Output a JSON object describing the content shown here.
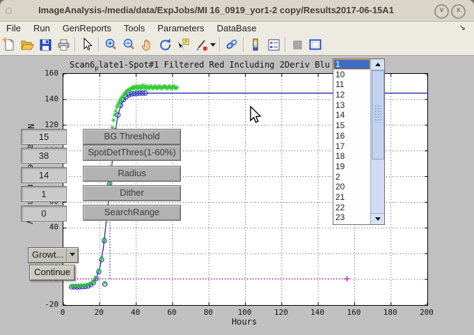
{
  "window": {
    "title": "ImageAnalysis-/media/data/ExpJobs/MI 16_0919_yor1-2 copy/Results2017-06-15A1",
    "minimize_glyph": "v",
    "close_glyph": "x"
  },
  "menu": {
    "items": [
      "File",
      "Run",
      "GenReports",
      "Tools",
      "Parameters",
      "DataBase"
    ],
    "overflow_arrow": "↘"
  },
  "toolbar": {
    "icons": [
      "new-document",
      "open-file",
      "save",
      "print",
      "cursor-arrow",
      "zoom-in",
      "zoom-out",
      "pan-hand",
      "rotate-3d",
      "data-cursor",
      "brush",
      "brush-dropdown",
      "link-plots",
      "insert-colorbar",
      "insert-legend",
      "hide-plot-tools",
      "dock-figure"
    ]
  },
  "controls": {
    "rows": [
      {
        "value": "15",
        "label": "BG Threshold"
      },
      {
        "value": "38",
        "label": "SpotDetThres(1-60%)"
      },
      {
        "value": "14",
        "label": "Radius"
      },
      {
        "value": "1",
        "label": "Dither"
      },
      {
        "value": "0",
        "label": "SearchRange"
      }
    ],
    "growth_dropdown_label": "Growt...",
    "continue_label": "Continue"
  },
  "listbox": {
    "items": [
      "1",
      "10",
      "11",
      "12",
      "13",
      "14",
      "15",
      "16",
      "17",
      "18",
      "19",
      "2",
      "20",
      "21",
      "22",
      "23"
    ],
    "selected": "1"
  },
  "chart_data": {
    "type": "line",
    "title_prefix": "Scan6",
    "title_sub": "p",
    "title_rest": "late1-Spot#1 Filtered Red Including 2Deriv Blu",
    "xlabel": "Hours",
    "ylabel": "Normalized Intensity",
    "xlim": [
      0,
      200
    ],
    "ylim": [
      -20,
      160
    ],
    "xticks": [
      0,
      20,
      40,
      60,
      80,
      100,
      120,
      140,
      160,
      180,
      200
    ],
    "yticks": [
      -20,
      0,
      20,
      40,
      60,
      80,
      100,
      120,
      140,
      160
    ],
    "grid": true,
    "legend_position": "none",
    "series": [
      {
        "name": "growth-fit-line",
        "type": "line",
        "style": "solid",
        "color": "#2126b4",
        "points": [
          [
            4,
            -6
          ],
          [
            6,
            -6
          ],
          [
            8,
            -5.9
          ],
          [
            10,
            -5.7
          ],
          [
            12,
            -5.5
          ],
          [
            14,
            -4.9
          ],
          [
            16,
            -3.2
          ],
          [
            18,
            0.6
          ],
          [
            20,
            8.8
          ],
          [
            22,
            24.7
          ],
          [
            24,
            50.5
          ],
          [
            26,
            78.4
          ],
          [
            28,
            109
          ],
          [
            30,
            127.9
          ],
          [
            32,
            136.9
          ],
          [
            34,
            141.6
          ],
          [
            36,
            143.6
          ],
          [
            38,
            144.5
          ],
          [
            40,
            144.8
          ],
          [
            44,
            144.9
          ],
          [
            50,
            145
          ],
          [
            60,
            145
          ],
          [
            80,
            145
          ],
          [
            120,
            145
          ],
          [
            160,
            145
          ],
          [
            200,
            145
          ]
        ]
      },
      {
        "name": "data-point-circles",
        "type": "scatter",
        "marker": "circle",
        "color": "#2733c0",
        "points": [
          [
            4.5,
            -5.9
          ],
          [
            6,
            -5.9
          ],
          [
            7.5,
            -5.85
          ],
          [
            9,
            -5.8
          ],
          [
            10.5,
            -5.7
          ],
          [
            12,
            -5.5
          ],
          [
            13.5,
            -5.1
          ],
          [
            15,
            -4.1
          ],
          [
            16.5,
            -2.5
          ],
          [
            18,
            0.6
          ],
          [
            19.5,
            6
          ],
          [
            21,
            15.4
          ],
          [
            22.5,
            30.1
          ],
          [
            24,
            50.5
          ],
          [
            25.5,
            74.4
          ],
          [
            27,
            97.2
          ],
          [
            28.5,
            115.5
          ],
          [
            30,
            127.9
          ],
          [
            31.5,
            135.5
          ],
          [
            33,
            139.9
          ],
          [
            34.5,
            142.3
          ],
          [
            36,
            143.6
          ],
          [
            37.5,
            144.3
          ],
          [
            39,
            144.6
          ],
          [
            40.5,
            144.8
          ],
          [
            42,
            144.9
          ],
          [
            43.5,
            144.9
          ],
          [
            45,
            145
          ],
          [
            22.8,
            -3.6
          ]
        ]
      },
      {
        "name": "raw-intensity-stars",
        "type": "scatter",
        "marker": "star",
        "color": "#2eca2e",
        "points": [
          [
            4.5,
            -4.9
          ],
          [
            6,
            -4.9
          ],
          [
            7.5,
            -4.8
          ],
          [
            9,
            -4.8
          ],
          [
            10.5,
            -4.7
          ],
          [
            12,
            -4.5
          ],
          [
            13.5,
            -4.1
          ],
          [
            15,
            -3.1
          ],
          [
            16.5,
            -1.5
          ],
          [
            18,
            1.6
          ],
          [
            19.5,
            7
          ],
          [
            21,
            16.5
          ],
          [
            22.5,
            31
          ],
          [
            24,
            51
          ],
          [
            25.5,
            75
          ],
          [
            26.2,
            88
          ],
          [
            22.8,
            -2.6
          ],
          [
            27,
            118
          ],
          [
            27.6,
            124
          ],
          [
            28.2,
            128
          ],
          [
            28.8,
            131
          ],
          [
            29.4,
            134
          ],
          [
            30,
            136
          ],
          [
            30.6,
            138
          ],
          [
            31.2,
            139.5
          ],
          [
            31.8,
            141
          ],
          [
            32.4,
            142
          ],
          [
            33,
            143
          ],
          [
            33.6,
            144.5
          ],
          [
            34.2,
            145.5
          ],
          [
            34.8,
            146.5
          ],
          [
            35.4,
            147
          ],
          [
            36,
            147.5
          ],
          [
            36.6,
            148.5
          ],
          [
            37.2,
            147.5
          ],
          [
            37.8,
            149
          ],
          [
            38.4,
            150
          ],
          [
            39,
            148.5
          ],
          [
            39.6,
            149.5
          ],
          [
            40.2,
            150.5
          ],
          [
            40.8,
            148.5
          ],
          [
            41.4,
            149.5
          ],
          [
            42,
            150.5
          ],
          [
            42.6,
            148.5
          ],
          [
            43.2,
            149.5
          ],
          [
            43.8,
            151
          ],
          [
            44.4,
            149.5
          ],
          [
            45,
            148.5
          ],
          [
            45.6,
            150.5
          ],
          [
            46.2,
            149.5
          ],
          [
            46.8,
            148.5
          ],
          [
            47.4,
            149.5
          ],
          [
            48,
            150.5
          ],
          [
            48.6,
            149.5
          ],
          [
            49.2,
            148.5
          ],
          [
            49.8,
            149.5
          ],
          [
            50.4,
            150.5
          ],
          [
            51,
            149.5
          ],
          [
            51.6,
            148.5
          ],
          [
            52.2,
            149.5
          ],
          [
            52.8,
            150.5
          ],
          [
            53.4,
            149.5
          ],
          [
            54,
            148.5
          ],
          [
            54.6,
            149.5
          ],
          [
            55.2,
            149.8
          ],
          [
            55.8,
            150.5
          ],
          [
            56.4,
            149.5
          ],
          [
            57,
            148.5
          ],
          [
            57.6,
            149.5
          ],
          [
            58.2,
            150.5
          ],
          [
            58.8,
            149.5
          ],
          [
            59.4,
            148.5
          ],
          [
            60,
            149.5
          ],
          [
            60.6,
            150.5
          ],
          [
            61.2,
            149.5
          ],
          [
            61.8,
            148.5
          ],
          [
            62.4,
            149.5
          ]
        ]
      },
      {
        "name": "baseline-dotted",
        "type": "line",
        "style": "dotted",
        "color": "#d428c8",
        "end_marker": "plus",
        "points": [
          [
            0,
            0.5
          ],
          [
            155.8,
            0.5
          ]
        ]
      },
      {
        "name": "threshold-vline-dotted",
        "type": "line",
        "style": "dotted",
        "color": "#2126b4",
        "points": [
          [
            25.6,
            0.5
          ],
          [
            25.6,
            53
          ]
        ]
      }
    ]
  }
}
